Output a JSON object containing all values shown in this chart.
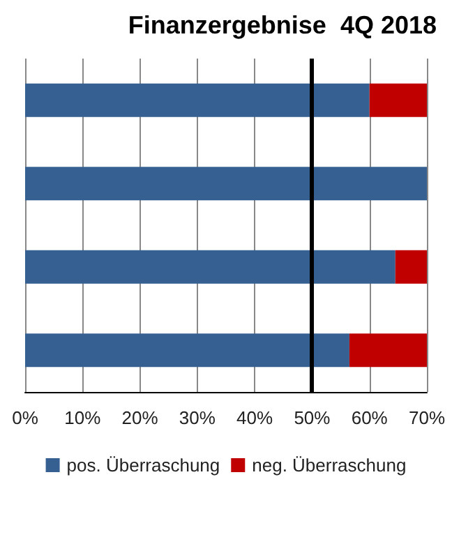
{
  "chart_data": {
    "type": "bar",
    "title": "Finanzergebnise  4Q 2018",
    "orientation": "horizontal",
    "stacked": true,
    "categories": [
      null,
      null,
      null,
      null
    ],
    "series": [
      {
        "name": "pos. Überraschung",
        "color": "#376092",
        "values": [
          60,
          70,
          64.5,
          56.5
        ]
      },
      {
        "name": "neg. Überraschung",
        "color": "#c00000",
        "values": [
          10,
          0,
          5.5,
          13.5
        ]
      }
    ],
    "xlim": [
      0,
      70
    ],
    "xticks": [
      {
        "value": 0,
        "label": "0%"
      },
      {
        "value": 10,
        "label": "10%"
      },
      {
        "value": 20,
        "label": "20%"
      },
      {
        "value": 30,
        "label": "30%"
      },
      {
        "value": 40,
        "label": "40%"
      },
      {
        "value": 50,
        "label": "50%"
      },
      {
        "value": 60,
        "label": "60%"
      },
      {
        "value": 70,
        "label": "70%"
      }
    ],
    "ref_lines": [
      {
        "axis": "x",
        "value": 50,
        "color": "#000000"
      }
    ],
    "grid": "x",
    "legend": "bottom"
  }
}
